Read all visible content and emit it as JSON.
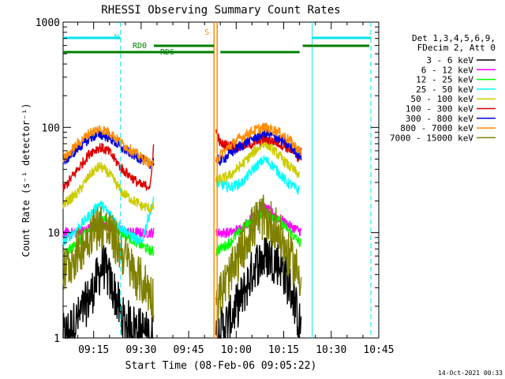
{
  "chart_data": {
    "type": "line",
    "title": "RHESSI Observing Summary Count Rates",
    "xlabel": "Start Time (08-Feb-06 09:05:22)",
    "ylabel": "Count Rate (s⁻¹ detector⁻¹)",
    "y_scale": "log",
    "ylim": [
      1,
      1000
    ],
    "y_ticks": [
      "1",
      "10",
      "100",
      "1000"
    ],
    "xlim": [
      "09:05:22",
      "10:45:00"
    ],
    "x_ticks": [
      "09:15",
      "09:30",
      "09:45",
      "10:00",
      "10:15",
      "10:30",
      "10:45"
    ],
    "legend_header": [
      "Det 1,3,4,5,6,9,",
      "FDecim 2, Att 0"
    ],
    "legend_position": "right",
    "footer": "14-Oct-2021 00:33",
    "annotations": {
      "night_label": "N",
      "saa_label": "S",
      "rd0_label": "RD0",
      "rd6_label": "RD6",
      "night_color": "#00e5ee",
      "saa_color": "#ff8c00",
      "decim_color": "#008000",
      "night_intervals": [
        [
          "09:05:22",
          "09:23:30"
        ],
        [
          "10:24:00",
          "10:42:30"
        ]
      ],
      "data_gaps": [
        "09:34:00",
        "09:53:30",
        "10:20:30",
        "10:42:30"
      ]
    },
    "series": [
      {
        "name": "3 - 6 keV",
        "color": "#000000",
        "x": [
          "09:05",
          "09:10",
          "09:14",
          "09:18",
          "09:22",
          "09:24",
          "09:34",
          "09:53",
          "09:58",
          "10:02",
          "10:06",
          "10:10",
          "10:14",
          "10:18",
          "10:21"
        ],
        "values": [
          1,
          1.5,
          2.5,
          5,
          2.5,
          1.5,
          1,
          1,
          1.5,
          2.5,
          5,
          6,
          5,
          2.5,
          1
        ]
      },
      {
        "name": "6 - 12 keV",
        "color": "#ff00ff",
        "x": [
          "09:05",
          "09:10",
          "09:14",
          "09:18",
          "09:22",
          "09:25",
          "09:34",
          "09:45",
          "09:53",
          "09:58",
          "10:02",
          "10:06",
          "10:09",
          "10:12",
          "10:16",
          "10:21",
          "10:24",
          "10:35",
          "10:42"
        ],
        "values": [
          10,
          10,
          11,
          12,
          11,
          10,
          10,
          10,
          10,
          10,
          11,
          15,
          17,
          15,
          12,
          10,
          10,
          10,
          10
        ]
      },
      {
        "name": "12 - 25 keV",
        "color": "#00ff00",
        "x": [
          "09:05",
          "09:10",
          "09:14",
          "09:18",
          "09:22",
          "09:26",
          "09:32",
          "09:34",
          "09:45",
          "09:53",
          "09:58",
          "10:02",
          "10:06",
          "10:09",
          "10:12",
          "10:16",
          "10:20",
          "10:24",
          "10:35",
          "10:42"
        ],
        "values": [
          6,
          8,
          11,
          14,
          11,
          9,
          7,
          6.5,
          6.5,
          6.5,
          8,
          11,
          14,
          16,
          14,
          11,
          8,
          7,
          6.5,
          6.5
        ]
      },
      {
        "name": "25 - 50 keV",
        "color": "#00ffff",
        "x": [
          "09:05",
          "09:10",
          "09:14",
          "09:17",
          "09:20",
          "09:24",
          "09:30",
          "09:34",
          "09:45",
          "09:53",
          "09:58",
          "10:02",
          "10:06",
          "10:09",
          "10:12",
          "10:16",
          "10:20"
        ],
        "values": [
          8,
          11,
          15,
          19,
          15,
          11,
          8,
          21,
          24,
          30,
          27,
          30,
          42,
          50,
          42,
          30,
          25
        ]
      },
      {
        "name": "50 - 100 keV",
        "color": "#cccc00",
        "x": [
          "09:05",
          "09:10",
          "09:14",
          "09:17",
          "09:20",
          "09:24",
          "09:30",
          "09:33",
          "09:58",
          "10:02",
          "10:06",
          "10:09",
          "10:12",
          "10:16",
          "10:20"
        ],
        "values": [
          18,
          24,
          36,
          43,
          36,
          24,
          18,
          17,
          35,
          45,
          60,
          72,
          60,
          45,
          35
        ]
      },
      {
        "name": "100 - 300 keV",
        "color": "#dd0000",
        "x": [
          "09:05",
          "09:10",
          "09:14",
          "09:17",
          "09:20",
          "09:24",
          "09:30",
          "09:33",
          "09:34",
          "09:45",
          "09:53",
          "09:55",
          "10:00",
          "10:05",
          "10:09",
          "10:13",
          "10:17",
          "10:20",
          "10:21",
          "10:32",
          "10:42"
        ],
        "values": [
          25,
          40,
          58,
          65,
          58,
          40,
          28,
          28,
          73,
          80,
          102,
          70,
          65,
          70,
          78,
          72,
          62,
          50,
          100,
          75,
          70
        ]
      },
      {
        "name": "300 - 800 keV",
        "color": "#0000dd",
        "x": [
          "09:05",
          "09:10",
          "09:14",
          "09:17",
          "09:20",
          "09:24",
          "09:30",
          "09:33",
          "09:34",
          "09:45",
          "09:53",
          "09:55",
          "10:00",
          "10:05",
          "10:09",
          "10:13",
          "10:17",
          "10:20",
          "10:24",
          "10:32",
          "10:42"
        ],
        "values": [
          45,
          63,
          80,
          86,
          80,
          63,
          50,
          45,
          48,
          48,
          50,
          48,
          62,
          78,
          88,
          80,
          65,
          55,
          48,
          48,
          48
        ]
      },
      {
        "name": "800 - 7000 keV",
        "color": "#ff8c00",
        "x": [
          "09:05",
          "09:10",
          "09:14",
          "09:17",
          "09:20",
          "09:24",
          "09:30",
          "09:33",
          "09:34",
          "09:45",
          "09:53",
          "09:55",
          "10:00",
          "10:05",
          "10:09",
          "10:13",
          "10:17",
          "10:20",
          "10:24",
          "10:32",
          "10:42"
        ],
        "values": [
          48,
          70,
          90,
          97,
          90,
          70,
          52,
          45,
          43,
          43,
          45,
          55,
          75,
          92,
          100,
          92,
          75,
          60,
          42,
          41,
          41
        ]
      },
      {
        "name": "7000 - 15000 keV",
        "color": "#808000",
        "x": [
          "09:05",
          "09:10",
          "09:14",
          "09:17",
          "09:20",
          "09:24",
          "09:28",
          "09:32",
          "09:35",
          "09:45",
          "09:53",
          "09:56",
          "10:00",
          "10:04",
          "10:08",
          "10:12",
          "10:16",
          "10:20",
          "10:24",
          "10:35",
          "10:42"
        ],
        "values": [
          4,
          6.5,
          10,
          12,
          10,
          6.5,
          4,
          3,
          2,
          2,
          2,
          3,
          5,
          10,
          14,
          12,
          6.5,
          4,
          3,
          2.5,
          2.5
        ]
      }
    ]
  }
}
